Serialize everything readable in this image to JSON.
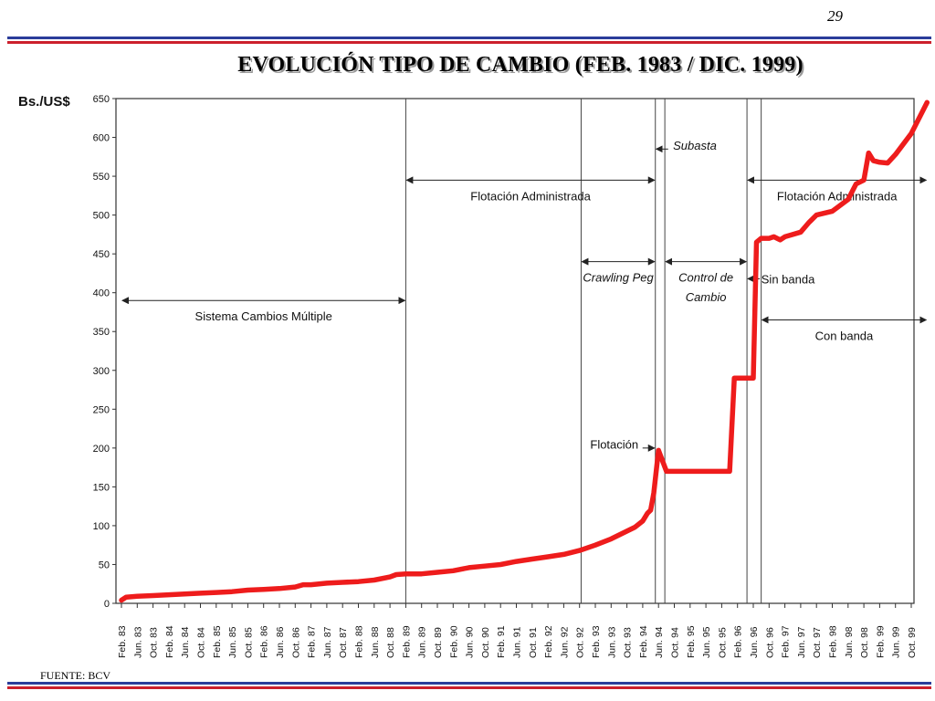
{
  "slide": {
    "page_number": "29",
    "title": "EVOLUCIÓN TIPO DE CAMBIO  (FEB. 1983 / DIC. 1999)",
    "footer": "FUENTE: BCV"
  },
  "colors": {
    "line": "#ee1c1c",
    "rule_blue": "#2b3d9a",
    "rule_red": "#cc1f2c"
  },
  "chart_data": {
    "type": "line",
    "ylabel": "Bs./US$",
    "ylim": [
      0,
      650
    ],
    "yticks": [
      0,
      50,
      100,
      150,
      200,
      250,
      300,
      350,
      400,
      450,
      500,
      550,
      600,
      650
    ],
    "categories": [
      "Feb. 83",
      "Jun. 83",
      "Oct. 83",
      "Feb. 84",
      "Jun. 84",
      "Oct. 84",
      "Feb. 85",
      "Jun. 85",
      "Oct. 85",
      "Feb. 86",
      "Jun. 86",
      "Oct. 86",
      "Feb. 87",
      "Jun. 87",
      "Oct. 87",
      "Feb. 88",
      "Jun. 88",
      "Oct. 88",
      "Feb. 89",
      "Jun. 89",
      "Oct. 89",
      "Feb. 90",
      "Jun. 90",
      "Oct. 90",
      "Feb. 91",
      "Jun. 91",
      "Oct. 91",
      "Feb. 92",
      "Jun. 92",
      "Oct. 92",
      "Feb. 93",
      "Jun. 93",
      "Oct. 93",
      "Feb. 94",
      "Jun. 94",
      "Oct. 94",
      "Feb. 95",
      "Jun. 95",
      "Oct. 95",
      "Feb. 96",
      "Jun. 96",
      "Oct. 96",
      "Feb. 97",
      "Jun. 97",
      "Oct. 97",
      "Feb. 98",
      "Jun. 98",
      "Oct. 98",
      "Feb. 99",
      "Jun. 99",
      "Oct. 99"
    ],
    "series": [
      {
        "x": [
          0,
          0.3,
          1,
          2,
          3,
          4,
          5,
          6,
          7,
          8,
          9,
          10,
          11,
          11.5,
          12,
          13,
          14,
          15,
          16,
          17,
          17.4,
          18,
          19,
          20,
          21,
          22,
          23,
          24,
          25,
          26,
          27,
          28,
          29,
          30,
          31,
          32,
          32.5,
          33,
          33.3,
          33.5,
          33.7,
          34,
          34.5,
          35,
          36,
          37,
          38,
          38.5,
          38.8,
          39,
          39.5,
          40,
          40.2,
          40.5,
          41,
          41.3,
          41.7,
          42,
          43,
          43.5,
          44,
          45,
          46,
          46.5,
          47,
          47.3,
          47.6,
          48,
          48.5,
          49,
          50,
          51
        ],
        "values": [
          4,
          8,
          9,
          10,
          11,
          12,
          13,
          14,
          15,
          17,
          18,
          19,
          21,
          24,
          24,
          26,
          27,
          28,
          30,
          34,
          37,
          38,
          38,
          40,
          42,
          46,
          48,
          50,
          54,
          57,
          60,
          63,
          68,
          75,
          83,
          93,
          98,
          106,
          116,
          120,
          142,
          197,
          170,
          170,
          170,
          170,
          170,
          170,
          290,
          290,
          290,
          290,
          465,
          470,
          470,
          472,
          468,
          472,
          478,
          490,
          500,
          505,
          520,
          540,
          545,
          580,
          570,
          568,
          567,
          578,
          605,
          645
        ]
      }
    ],
    "regime_lines_x": [
      18,
      29.1,
      33.8,
      34.4,
      39.6,
      40.5
    ],
    "annotations": [
      {
        "text": "Sistema Cambios Múltiple",
        "x_from": 0,
        "x_to": 18,
        "y": 390,
        "label_y": 370
      },
      {
        "text": "Flotación Administrada",
        "x_from": 18,
        "x_to": 33.8,
        "y": 545,
        "label_y": 525
      },
      {
        "text": "Crawling Peg",
        "x_from": 29.1,
        "x_to": 33.8,
        "y": 440,
        "label_y": 420,
        "italic": true
      },
      {
        "text": "Control de",
        "x_from": 34.4,
        "x_to": 39.6,
        "y": 440,
        "label_y": 420,
        "italic": true
      },
      {
        "text": "Cambio",
        "label_x": 37,
        "label_y": 395,
        "italic": true
      },
      {
        "text": "Flotación Administrada",
        "x_from": 39.6,
        "x_to": 51,
        "y": 545,
        "label_y": 525
      },
      {
        "text": "Con banda",
        "x_from": 40.5,
        "x_to": 51,
        "y": 365,
        "label_y": 345
      },
      {
        "text": "Subasta",
        "arrow_to_x": 33.8,
        "y": 585,
        "label_x": 36.3,
        "label_y": 590,
        "italic": true
      },
      {
        "text": "Sin banda",
        "arrow_to_x": 39.6,
        "y": 418,
        "label_x": 42.2,
        "label_y": 418
      },
      {
        "text": "Flotación",
        "arrow_to_x": 33.8,
        "y": 200,
        "label_x": 31.2,
        "label_y": 205
      }
    ]
  }
}
